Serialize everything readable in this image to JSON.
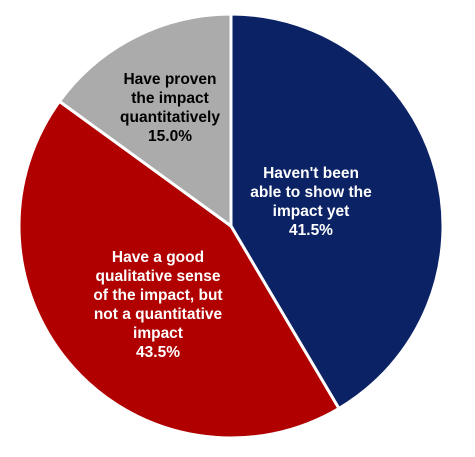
{
  "chart_data": {
    "type": "pie",
    "start_angle_deg": 0,
    "direction": "clockwise",
    "slices": [
      {
        "label_lines": [
          "Haven't been",
          "able to show the",
          "impact yet"
        ],
        "value_label": "41.5%",
        "value": 41.5,
        "color": "#0b2265",
        "text_color": "#ffffff"
      },
      {
        "label_lines": [
          "Have a good",
          "qualitative sense",
          "of the impact, but",
          "not a quantitative",
          "impact"
        ],
        "value_label": "43.5%",
        "value": 43.5,
        "color": "#b00000",
        "text_color": "#ffffff"
      },
      {
        "label_lines": [
          "Have proven",
          "the impact",
          "quantitatively"
        ],
        "value_label": "15.0%",
        "value": 15.0,
        "color": "#ababab",
        "text_color": "#000000"
      }
    ]
  }
}
